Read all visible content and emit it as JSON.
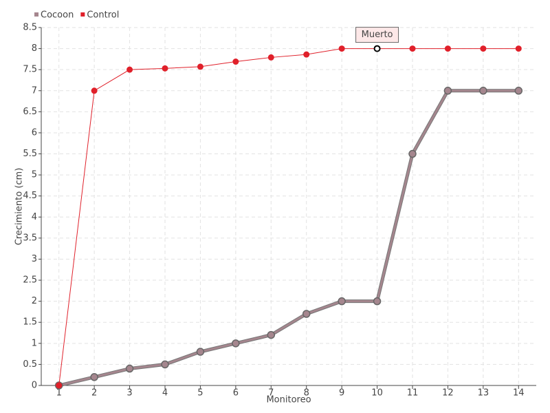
{
  "chart_data": {
    "type": "line",
    "categories": [
      "1",
      "2",
      "3",
      "4",
      "5",
      "6",
      "7",
      "8",
      "9",
      "10",
      "11",
      "12",
      "13",
      "14"
    ],
    "series": [
      {
        "name": "Cocoon",
        "color": "#a5868e",
        "values": [
          0,
          0.2,
          0.4,
          0.5,
          0.8,
          1,
          1.2,
          1.7,
          2,
          2,
          5.5,
          7,
          7,
          7
        ]
      },
      {
        "name": "Control",
        "color": "#e0202a",
        "values": [
          0,
          7,
          7.5,
          7.53,
          7.57,
          7.69,
          7.79,
          7.86,
          8,
          8,
          8,
          8,
          8,
          8
        ]
      }
    ],
    "ylim": [
      0,
      8.5
    ],
    "yticks": [
      0,
      0.5,
      1,
      1.5,
      2,
      2.5,
      3,
      3.5,
      4,
      4.5,
      5,
      5.5,
      6,
      6.5,
      7,
      7.5,
      8,
      8.5
    ],
    "xlabel": "Monitoreo",
    "ylabel": "Crecimiento (cm)",
    "annotation": {
      "text": "Muerto",
      "x": "10",
      "y": 8
    },
    "grid": true,
    "legend": "top-left"
  }
}
